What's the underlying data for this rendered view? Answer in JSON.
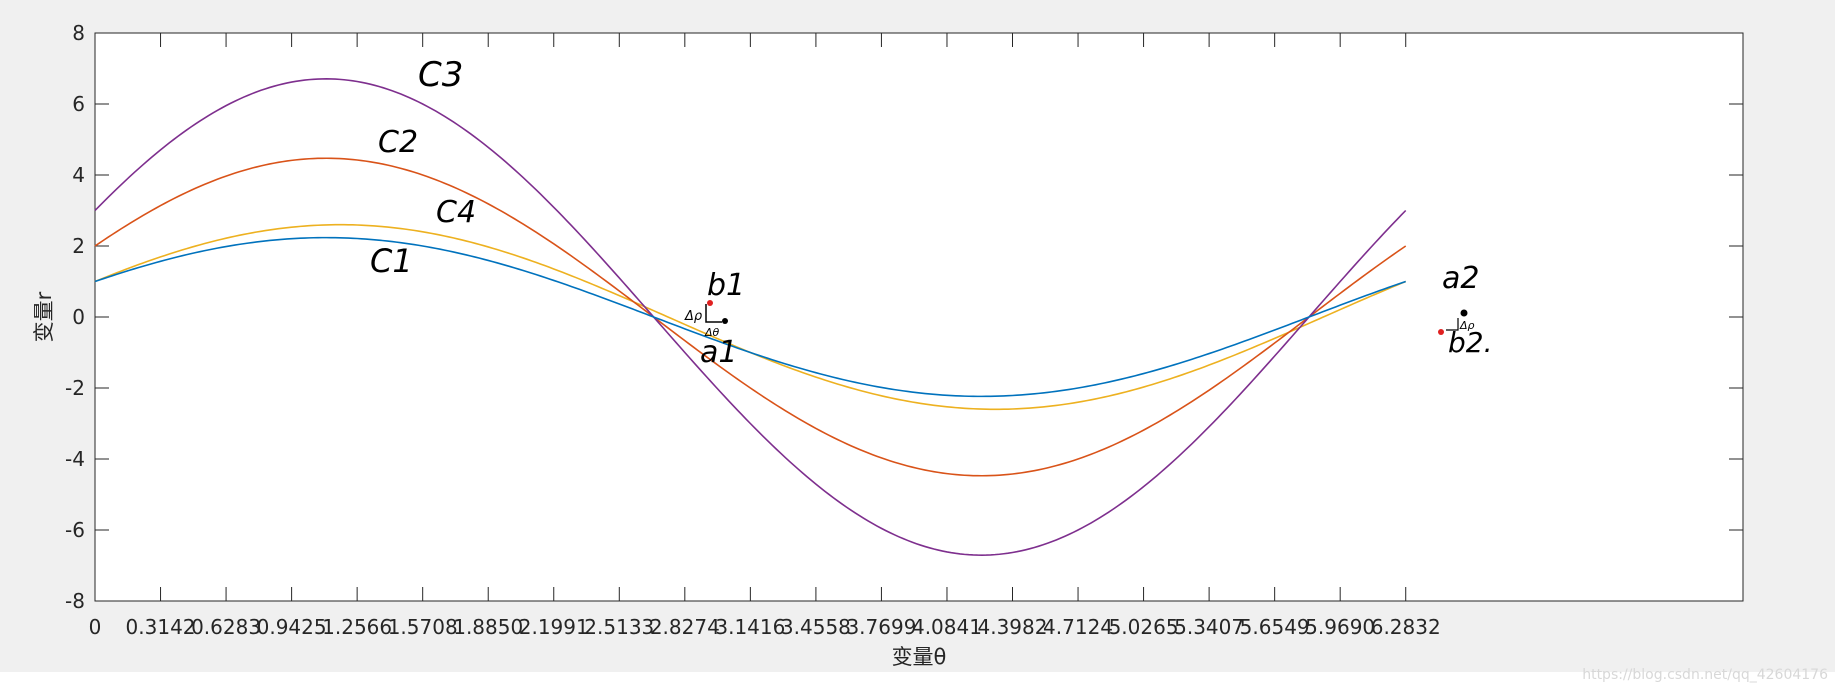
{
  "chart_data": {
    "type": "line",
    "xlabel": "变量θ",
    "ylabel": "变量r",
    "xlim": [
      0,
      7.9
    ],
    "ylim": [
      -8,
      8
    ],
    "x_ticks": [
      "0",
      "0.3142",
      "0.6283",
      "0.9425",
      "1.2566",
      "1.5708",
      "1.8850",
      "2.1991",
      "2.5133",
      "2.8274",
      "3.1416",
      "3.4558",
      "3.7699",
      "4.0841",
      "4.3982",
      "4.7124",
      "5.0265",
      "5.3407",
      "5.6549",
      "5.9690",
      "6.2832"
    ],
    "y_ticks": [
      "8",
      "6",
      "4",
      "2",
      "0",
      "-2",
      "-4",
      "-6",
      "-8"
    ],
    "grid": false,
    "series": [
      {
        "name": "C1",
        "color": "#0072BD",
        "A": 1,
        "B": 2,
        "x": [
          0,
          0.3142,
          0.6283,
          0.9425,
          1.2566,
          1.5708,
          1.885,
          2.1991,
          2.5133,
          2.8274,
          3.1416,
          3.4558,
          3.7699,
          4.0841,
          4.3982,
          4.7124,
          5.0265,
          5.3407,
          5.6549,
          5.969,
          6.2832
        ],
        "values": [
          1,
          1.57,
          1.99,
          2.21,
          2.21,
          2.0,
          1.57,
          0.99,
          0.36,
          -0.33,
          -1.0,
          -1.57,
          -1.99,
          -2.21,
          -2.21,
          -2.0,
          -1.57,
          -0.99,
          -0.36,
          0.33,
          1.0
        ]
      },
      {
        "name": "C2",
        "color": "#D95319",
        "A": 2,
        "B": 4,
        "x": [
          0,
          0.3142,
          0.6283,
          0.9425,
          1.2566,
          1.5708,
          1.885,
          2.1991,
          2.5133,
          2.8274,
          3.1416,
          3.4558,
          3.7699,
          4.0841,
          4.3982,
          4.7124,
          5.0265,
          5.3407,
          5.6549,
          5.969,
          6.2832
        ],
        "values": [
          2,
          3.14,
          3.97,
          4.41,
          4.42,
          4.0,
          3.13,
          1.97,
          0.71,
          -0.66,
          -2.0,
          -3.14,
          -3.97,
          -4.41,
          -4.42,
          -4.0,
          -3.13,
          -1.97,
          -0.71,
          0.66,
          2.0
        ]
      },
      {
        "name": "C3",
        "color": "#7E2F8E",
        "A": 3,
        "B": 6,
        "x": [
          0,
          0.3142,
          0.6283,
          0.9425,
          1.2566,
          1.5708,
          1.885,
          2.1991,
          2.5133,
          2.8274,
          3.1416,
          3.4558,
          3.7699,
          4.0841,
          4.3982,
          4.7124,
          5.0265,
          5.3407,
          5.6549,
          5.969,
          6.2832
        ],
        "values": [
          3,
          4.71,
          5.96,
          6.62,
          6.63,
          6.0,
          4.7,
          2.96,
          1.07,
          -0.99,
          -3.0,
          -4.71,
          -5.96,
          -6.62,
          -6.63,
          -6.0,
          -4.7,
          -2.96,
          -1.07,
          0.99,
          3.0
        ]
      },
      {
        "name": "C4",
        "color": "#EDB120",
        "A": 1,
        "B": 2.4,
        "x": [
          0,
          0.3142,
          0.6283,
          0.9425,
          1.2566,
          1.5708,
          1.885,
          2.1991,
          2.5133,
          2.8274,
          3.1416,
          3.4558,
          3.7699,
          4.0841,
          4.3982,
          4.7124,
          5.0265,
          5.3407,
          5.6549,
          5.969,
          6.2832
        ],
        "values": [
          1,
          1.7,
          2.22,
          2.54,
          2.59,
          2.4,
          1.97,
          1.36,
          0.6,
          -0.22,
          -1.0,
          -1.7,
          -2.22,
          -2.54,
          -2.59,
          -2.4,
          -1.97,
          -1.36,
          -0.6,
          0.22,
          1.0
        ]
      }
    ],
    "annotations": [
      "C3",
      "C2",
      "C4",
      "C1",
      "b1",
      "Δρ",
      "Δθ",
      "a1",
      "a2",
      "b2.",
      "Δρ"
    ]
  },
  "watermark": "https://blog.csdn.net/qq_42604176"
}
